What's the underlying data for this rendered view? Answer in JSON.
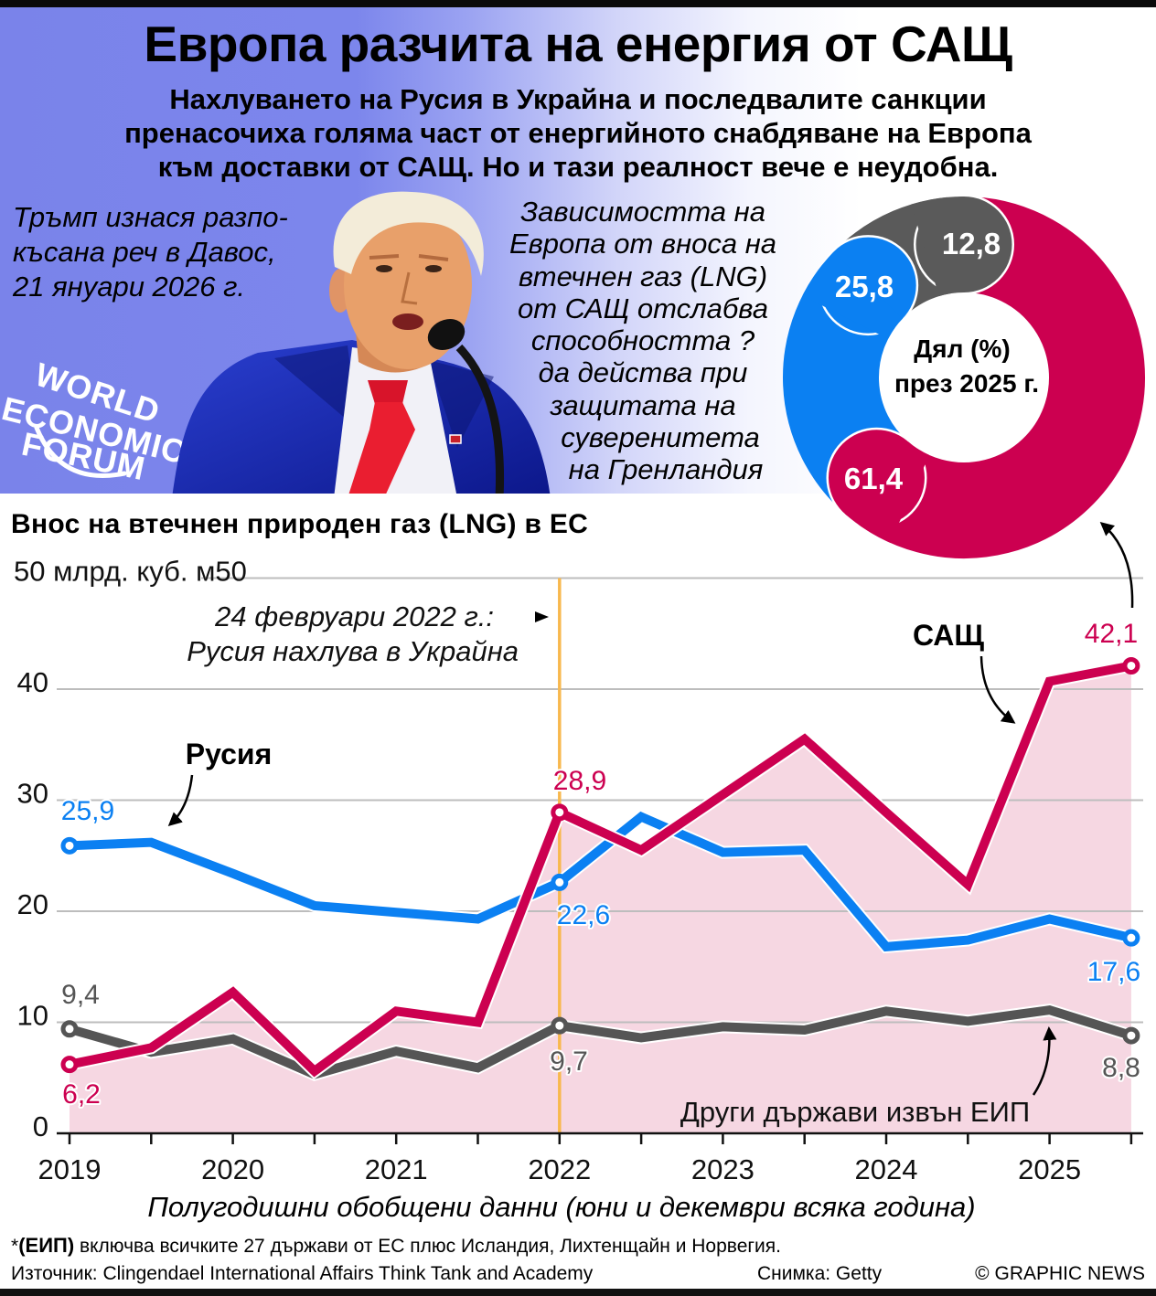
{
  "header": {
    "title": "Европа разчита на енергия от САЩ",
    "subtitle_lines": [
      "Нахлуването на Русия в Украйна и последвалите санкции",
      "пренасочиха голяма част от енергийното снабдяване на Европа",
      "към доставки от САЩ. Но и тази реалност вече е неудобна."
    ],
    "photo_caption_lines": [
      "Тръмп изнася разпо-",
      "късана реч в Давос,",
      "21 януари 2026 г."
    ],
    "commentary_lines": [
      "Зависимостта на",
      "Европа от вноса на",
      "втечнен газ (LNG)",
      "от САЩ отслабва",
      "способността ?",
      "да действа при",
      "защитата на",
      "суверенитета",
      "на Гренландия"
    ],
    "logo_lines": [
      "WORLD",
      "ECONOMIC",
      "FORUM"
    ]
  },
  "colors": {
    "usa": "#cc0050",
    "russia": "#0b80f2",
    "other": "#555555",
    "usa_fill": "#f6d7e2",
    "invasion_line": "#f8b84e",
    "header_gradient": "#7a83ea"
  },
  "chart_data": [
    {
      "type": "line",
      "title": "Внос на втечнен природен газ (LNG) в ЕС",
      "ylabel": "млрд. куб. м",
      "xlabel": "Полугодишни обобщени данни (юни и декември всяка година)",
      "x": [
        "2019 H1",
        "2019 H2",
        "2020 H1",
        "2020 H2",
        "2021 H1",
        "2021 H2",
        "2022 H1",
        "2022 H2",
        "2023 H1",
        "2023 H2",
        "2024 H1",
        "2024 H2",
        "2025 H1",
        "2025 H2"
      ],
      "xtick_labels": [
        "2019",
        "2020",
        "2021",
        "2022",
        "2023",
        "2024",
        "2025"
      ],
      "yticks": [
        0,
        10,
        20,
        30,
        40,
        50
      ],
      "ytick_labels": [
        "0",
        "10",
        "20",
        "30",
        "40",
        "50 млрд. куб. м50"
      ],
      "ylim": [
        0,
        50
      ],
      "grid": true,
      "series": [
        {
          "name": "Русия",
          "color": "#0b80f2",
          "values": [
            25.9,
            26.2,
            23.4,
            20.5,
            19.9,
            19.3,
            22.6,
            28.5,
            25.3,
            25.5,
            16.8,
            17.4,
            19.3,
            17.6
          ]
        },
        {
          "name": "САЩ",
          "color": "#cc0050",
          "fill": "#f6d7e2",
          "values": [
            6.2,
            7.7,
            12.7,
            5.6,
            11.0,
            10.0,
            28.9,
            25.5,
            30.5,
            35.5,
            28.9,
            22.4,
            40.7,
            42.1
          ]
        },
        {
          "name": "Други държави извън ЕИП",
          "color": "#555555",
          "values": [
            9.4,
            7.3,
            8.5,
            5.3,
            7.4,
            5.9,
            9.7,
            8.6,
            9.6,
            9.3,
            11.0,
            10.1,
            11.1,
            8.8
          ]
        }
      ],
      "value_labels": [
        {
          "series": 0,
          "index": 0,
          "text": "25,9"
        },
        {
          "series": 0,
          "index": 6,
          "text": "22,6"
        },
        {
          "series": 0,
          "index": 13,
          "text": "17,6"
        },
        {
          "series": 1,
          "index": 0,
          "text": "6,2"
        },
        {
          "series": 1,
          "index": 6,
          "text": "28,9"
        },
        {
          "series": 1,
          "index": 13,
          "text": "42,1"
        },
        {
          "series": 2,
          "index": 0,
          "text": "9,4"
        },
        {
          "series": 2,
          "index": 6,
          "text": "9,7"
        },
        {
          "series": 2,
          "index": 13,
          "text": "8,8"
        }
      ],
      "annotation": {
        "x": "2022",
        "lines": [
          "24 февруари 2022 г.:",
          "Русия нахлува в Украйна"
        ],
        "color": "#f8b84e"
      }
    },
    {
      "type": "pie",
      "style": "donut",
      "title_lines": [
        "Дял (%)",
        "през 2025 г."
      ],
      "categories": [
        "САЩ",
        "Русия",
        "Други държави извън ЕИП"
      ],
      "values": [
        61.4,
        25.8,
        12.8
      ],
      "labels": [
        "61,4",
        "25,8",
        "12,8"
      ],
      "colors": [
        "#cc0050",
        "#0b80f2",
        "#5a5a5a"
      ]
    }
  ],
  "footer": {
    "note_marker": "*",
    "note_term": "(ЕИП)",
    "note_text": " включва всичките 27 държави от ЕС плюс Исландия, Лихтенщайн и Норвегия.",
    "source": "Източник: Clingendael International Affairs Think Tank and Academy",
    "photo_credit": "Снимка: Getty",
    "copyright": "© GRAPHIC NEWS"
  }
}
